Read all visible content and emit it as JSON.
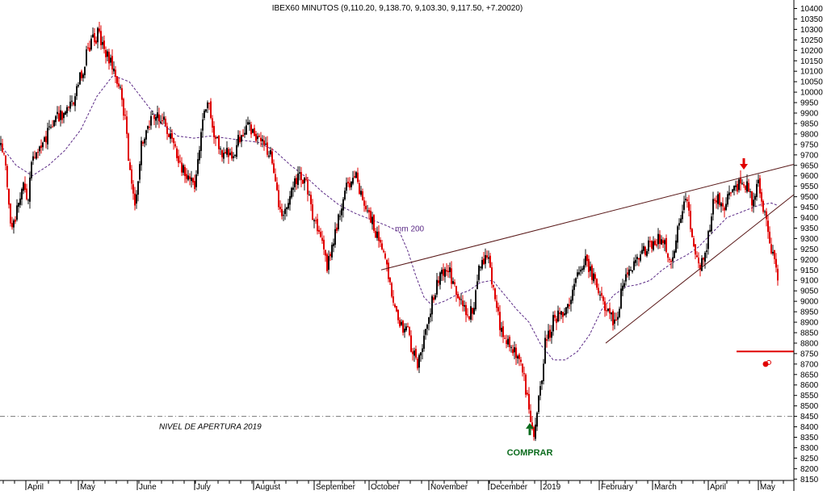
{
  "chart_data": {
    "type": "candlestick",
    "title": "IBEX60 MINUTOS (9,110.20, 9,138.70, 9,103.30, 9,117.50, +7.20020)",
    "ylim": [
      8125,
      10425
    ],
    "y_ticks": [
      10400,
      10350,
      10300,
      10250,
      10200,
      10150,
      10100,
      10050,
      10000,
      9950,
      9900,
      9850,
      9800,
      9750,
      9700,
      9650,
      9600,
      9550,
      9500,
      9450,
      9400,
      9350,
      9300,
      9250,
      9200,
      9150,
      9100,
      9050,
      9000,
      8950,
      8900,
      8850,
      8800,
      8750,
      8700,
      8650,
      8600,
      8550,
      8500,
      8450,
      8400,
      8350,
      8300,
      8250,
      8200,
      8150
    ],
    "x_month_labels": [
      "April",
      "May",
      "June",
      "July",
      "August",
      "September",
      "October",
      "November",
      "December",
      "2019",
      "February",
      "March",
      "April",
      "May"
    ],
    "price_path": [
      [
        0,
        9750
      ],
      [
        6,
        9680
      ],
      [
        12,
        9420
      ],
      [
        16,
        9350
      ],
      [
        22,
        9470
      ],
      [
        28,
        9550
      ],
      [
        34,
        9450
      ],
      [
        40,
        9700
      ],
      [
        55,
        9780
      ],
      [
        70,
        9880
      ],
      [
        85,
        9920
      ],
      [
        95,
        10000
      ],
      [
        105,
        10150
      ],
      [
        115,
        10250
      ],
      [
        122,
        10280
      ],
      [
        130,
        10200
      ],
      [
        140,
        10120
      ],
      [
        150,
        10000
      ],
      [
        157,
        9800
      ],
      [
        162,
        9550
      ],
      [
        168,
        9450
      ],
      [
        175,
        9750
      ],
      [
        185,
        9850
      ],
      [
        195,
        9900
      ],
      [
        205,
        9850
      ],
      [
        215,
        9750
      ],
      [
        225,
        9650
      ],
      [
        235,
        9600
      ],
      [
        242,
        9550
      ],
      [
        250,
        9850
      ],
      [
        258,
        9950
      ],
      [
        265,
        9800
      ],
      [
        275,
        9700
      ],
      [
        290,
        9720
      ],
      [
        305,
        9850
      ],
      [
        315,
        9800
      ],
      [
        325,
        9750
      ],
      [
        335,
        9700
      ],
      [
        345,
        9450
      ],
      [
        352,
        9400
      ],
      [
        360,
        9550
      ],
      [
        370,
        9600
      ],
      [
        380,
        9550
      ],
      [
        388,
        9400
      ],
      [
        398,
        9300
      ],
      [
        405,
        9150
      ],
      [
        412,
        9280
      ],
      [
        420,
        9400
      ],
      [
        430,
        9550
      ],
      [
        438,
        9620
      ],
      [
        448,
        9500
      ],
      [
        458,
        9400
      ],
      [
        468,
        9300
      ],
      [
        478,
        9200
      ],
      [
        485,
        9000
      ],
      [
        495,
        8900
      ],
      [
        505,
        8850
      ],
      [
        512,
        8750
      ],
      [
        518,
        8700
      ],
      [
        525,
        8850
      ],
      [
        535,
        9000
      ],
      [
        545,
        9150
      ],
      [
        555,
        9150
      ],
      [
        565,
        9050
      ],
      [
        575,
        8950
      ],
      [
        585,
        8950
      ],
      [
        595,
        9200
      ],
      [
        605,
        9200
      ],
      [
        612,
        9050
      ],
      [
        620,
        8850
      ],
      [
        628,
        8800
      ],
      [
        638,
        8750
      ],
      [
        648,
        8650
      ],
      [
        656,
        8450
      ],
      [
        662,
        8350
      ],
      [
        668,
        8550
      ],
      [
        675,
        8800
      ],
      [
        685,
        8900
      ],
      [
        695,
        8950
      ],
      [
        705,
        9000
      ],
      [
        715,
        9150
      ],
      [
        725,
        9200
      ],
      [
        735,
        9100
      ],
      [
        745,
        9000
      ],
      [
        755,
        8950
      ],
      [
        762,
        8880
      ],
      [
        770,
        9050
      ],
      [
        780,
        9150
      ],
      [
        790,
        9200
      ],
      [
        800,
        9250
      ],
      [
        810,
        9300
      ],
      [
        820,
        9300
      ],
      [
        830,
        9200
      ],
      [
        840,
        9350
      ],
      [
        850,
        9500
      ],
      [
        857,
        9300
      ],
      [
        865,
        9150
      ],
      [
        875,
        9250
      ],
      [
        885,
        9520
      ],
      [
        895,
        9450
      ],
      [
        905,
        9500
      ],
      [
        915,
        9550
      ],
      [
        922,
        9580
      ],
      [
        930,
        9480
      ],
      [
        940,
        9560
      ],
      [
        948,
        9400
      ],
      [
        955,
        9250
      ],
      [
        962,
        9120
      ],
      [
        964,
        9118
      ]
    ],
    "moving_average": {
      "label": "mm 200",
      "points": [
        [
          0,
          9750
        ],
        [
          20,
          9650
        ],
        [
          40,
          9600
        ],
        [
          60,
          9650
        ],
        [
          80,
          9720
        ],
        [
          100,
          9820
        ],
        [
          120,
          9980
        ],
        [
          140,
          10080
        ],
        [
          160,
          10050
        ],
        [
          180,
          9950
        ],
        [
          200,
          9850
        ],
        [
          220,
          9790
        ],
        [
          240,
          9780
        ],
        [
          260,
          9790
        ],
        [
          280,
          9780
        ],
        [
          300,
          9770
        ],
        [
          320,
          9760
        ],
        [
          340,
          9720
        ],
        [
          360,
          9650
        ],
        [
          380,
          9590
        ],
        [
          400,
          9520
        ],
        [
          420,
          9460
        ],
        [
          440,
          9420
        ],
        [
          460,
          9390
        ],
        [
          480,
          9360
        ],
        [
          495,
          9330
        ],
        [
          505,
          9240
        ],
        [
          515,
          9120
        ],
        [
          525,
          9020
        ],
        [
          535,
          8980
        ],
        [
          550,
          9000
        ],
        [
          565,
          9030
        ],
        [
          580,
          9050
        ],
        [
          595,
          9090
        ],
        [
          610,
          9100
        ],
        [
          625,
          9030
        ],
        [
          640,
          8960
        ],
        [
          655,
          8900
        ],
        [
          670,
          8790
        ],
        [
          685,
          8720
        ],
        [
          700,
          8720
        ],
        [
          715,
          8760
        ],
        [
          730,
          8840
        ],
        [
          745,
          8960
        ],
        [
          760,
          9030
        ],
        [
          775,
          9070
        ],
        [
          790,
          9080
        ],
        [
          805,
          9100
        ],
        [
          820,
          9150
        ],
        [
          835,
          9190
        ],
        [
          850,
          9220
        ],
        [
          865,
          9260
        ],
        [
          880,
          9320
        ],
        [
          900,
          9400
        ],
        [
          920,
          9430
        ],
        [
          940,
          9460
        ],
        [
          955,
          9470
        ],
        [
          962,
          9460
        ]
      ]
    },
    "trendlines": [
      {
        "from": [
          472,
          9150
        ],
        "to": [
          983,
          9655
        ],
        "color": "#5a1a1a"
      },
      {
        "from": [
          750,
          8800
        ],
        "to": [
          983,
          9510
        ],
        "color": "#5a1a1a"
      }
    ],
    "reference_lines": [
      {
        "y": 8450,
        "style": "dash-dot",
        "color": "#777777",
        "label": "NIVEL DE APERTURA 2019"
      },
      {
        "y": 8760,
        "style": "solid",
        "color": "#e00000",
        "x_from": 912,
        "x_to": 983
      }
    ],
    "annotations": [
      {
        "type": "arrow-down",
        "x": 921,
        "y": 9630,
        "color": "#e00000"
      },
      {
        "type": "arrow-up",
        "x": 656,
        "y": 8395,
        "color": "#0b6b1d",
        "label": "COMPRAR"
      },
      {
        "type": "target-icon",
        "x": 948,
        "y": 8700,
        "color": "#e00000"
      }
    ],
    "grid": false,
    "legend": "none"
  }
}
